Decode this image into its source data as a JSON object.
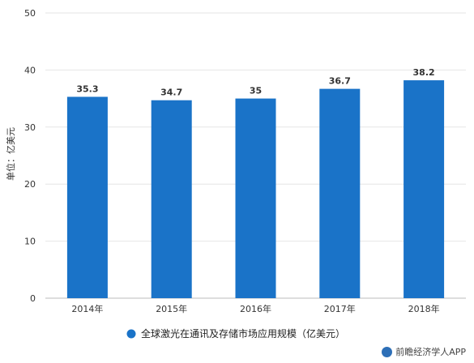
{
  "chart_data": {
    "type": "bar",
    "categories": [
      "2014年",
      "2015年",
      "2016年",
      "2017年",
      "2018年"
    ],
    "values": [
      35.3,
      34.7,
      35,
      36.7,
      38.2
    ],
    "data_labels": [
      "35.3",
      "34.7",
      "35",
      "36.7",
      "38.2"
    ],
    "ylabel": "单位：亿美元",
    "ylim": [
      0,
      50
    ],
    "yticks": [
      0,
      10,
      20,
      30,
      40,
      50
    ],
    "grid": true,
    "legend": {
      "label": "全球激光在通讯及存储市场应用规模（亿美元）",
      "placement": "bottom-center"
    },
    "bar_color": "#1a73c8"
  },
  "footer": {
    "brand": "前瞻经济学人APP"
  }
}
